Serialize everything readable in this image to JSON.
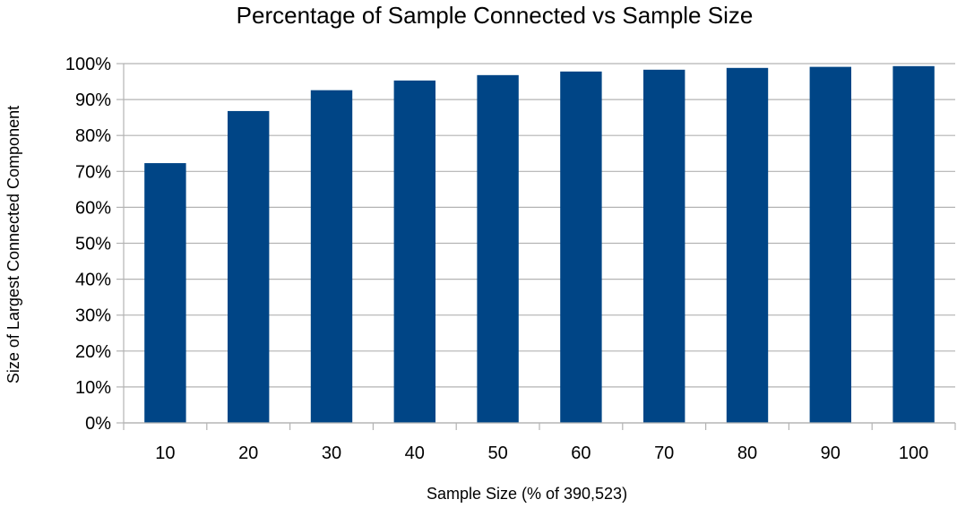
{
  "chart_data": {
    "type": "bar",
    "title": "Percentage of Sample Connected vs Sample Size",
    "xlabel": "Sample Size (% of 390,523)",
    "ylabel": "Size of Largest Connected Component",
    "categories": [
      "10",
      "20",
      "30",
      "40",
      "50",
      "60",
      "70",
      "80",
      "90",
      "100"
    ],
    "series": [
      {
        "values": [
          72.3,
          86.8,
          92.6,
          95.3,
          96.8,
          97.8,
          98.3,
          98.8,
          99.1,
          99.3
        ]
      }
    ],
    "ylim": [
      0,
      100
    ],
    "ytick_values": [
      0,
      10,
      20,
      30,
      40,
      50,
      60,
      70,
      80,
      90,
      100
    ],
    "ytick_labels": [
      "0%",
      "10%",
      "20%",
      "30%",
      "40%",
      "50%",
      "60%",
      "70%",
      "80%",
      "90%",
      "100%"
    ],
    "grid": "horizontal",
    "legend": "none",
    "colors": {
      "bar": "#004586",
      "grid": "#b3b3b3",
      "axis": "#b3b3b3",
      "text": "#000000"
    }
  }
}
